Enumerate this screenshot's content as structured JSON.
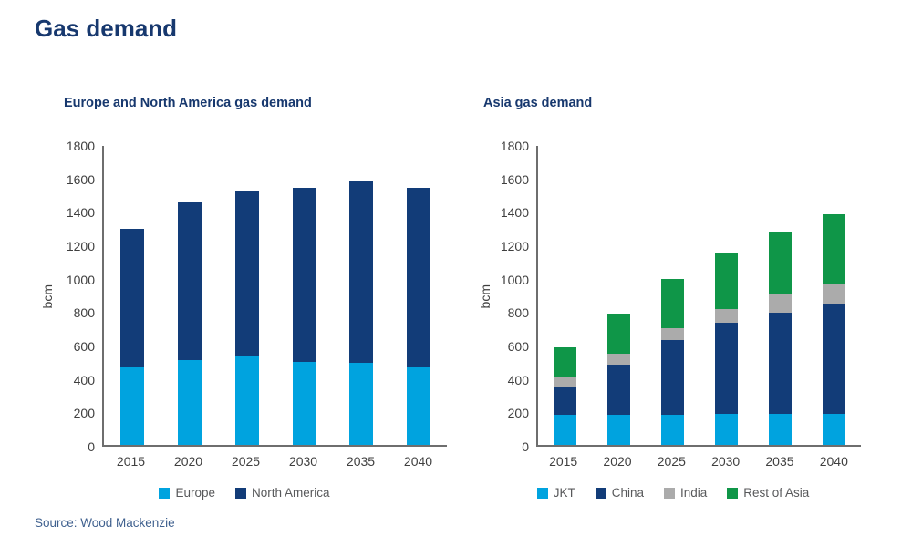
{
  "page": {
    "title": "Gas demand",
    "source": "Source: Wood Mackenzie"
  },
  "colors": {
    "title_navy": "#17386E",
    "light_blue": "#00A3DF",
    "dark_blue": "#123C78",
    "gray": "#ABABAB",
    "green": "#0F9648",
    "axis_line": "#6E6E6E",
    "axis_text": "#3F3F3F",
    "legend_text": "#58595B",
    "source_text": "#40618F"
  },
  "chart_data": [
    {
      "type": "bar",
      "stacked": true,
      "title": "Europe and North America gas demand",
      "ylabel": "bcm",
      "xlabel": "",
      "ylim": [
        0,
        1800
      ],
      "ytick_step": 200,
      "grid": false,
      "legend_position": "bottom",
      "categories": [
        "2015",
        "2020",
        "2025",
        "2030",
        "2035",
        "2040"
      ],
      "series": [
        {
          "name": "Europe",
          "color": "#00A3DF",
          "values": [
            465,
            510,
            530,
            500,
            495,
            465
          ]
        },
        {
          "name": "North America",
          "color": "#123C78",
          "values": [
            835,
            950,
            1000,
            1045,
            1095,
            1080
          ]
        }
      ],
      "totals": [
        1300,
        1460,
        1530,
        1545,
        1590,
        1545
      ]
    },
    {
      "type": "bar",
      "stacked": true,
      "title": "Asia gas demand",
      "ylabel": "bcm",
      "xlabel": "",
      "ylim": [
        0,
        1800
      ],
      "ytick_step": 200,
      "grid": false,
      "legend_position": "bottom",
      "categories": [
        "2015",
        "2020",
        "2025",
        "2030",
        "2035",
        "2040"
      ],
      "series": [
        {
          "name": "JKT",
          "color": "#00A3DF",
          "values": [
            180,
            180,
            180,
            185,
            185,
            185
          ]
        },
        {
          "name": "China",
          "color": "#123C78",
          "values": [
            170,
            305,
            450,
            550,
            610,
            660
          ]
        },
        {
          "name": "India",
          "color": "#ABABAB",
          "values": [
            55,
            65,
            70,
            85,
            110,
            125
          ]
        },
        {
          "name": "Rest of Asia",
          "color": "#0F9648",
          "values": [
            180,
            240,
            300,
            340,
            380,
            420
          ]
        }
      ],
      "totals": [
        585,
        790,
        1000,
        1160,
        1285,
        1390
      ]
    }
  ]
}
